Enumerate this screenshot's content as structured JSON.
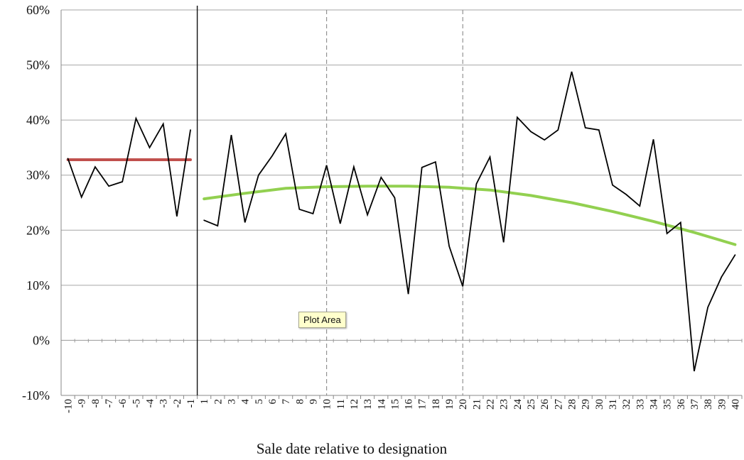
{
  "chart_data": {
    "type": "line",
    "xlabel": "Sale date relative to designation",
    "y_ticks": [
      "60%",
      "50%",
      "40%",
      "30%",
      "20%",
      "10%",
      "0%",
      "-10%"
    ],
    "ylim": [
      -10,
      60
    ],
    "x_categories": [
      "-10",
      "-9",
      "-8",
      "-7",
      "-6",
      "-5",
      "-4",
      "-3",
      "-2",
      "-1",
      "1",
      "2",
      "3",
      "4",
      "5",
      "6",
      "7",
      "8",
      "9",
      "10",
      "11",
      "12",
      "13",
      "14",
      "15",
      "16",
      "17",
      "18",
      "19",
      "20",
      "21",
      "22",
      "23",
      "24",
      "25",
      "26",
      "27",
      "28",
      "29",
      "30",
      "31",
      "32",
      "33",
      "34",
      "35",
      "36",
      "37",
      "38",
      "39",
      "40"
    ],
    "series": [
      {
        "color": "#000000",
        "before_x": [
          "-10",
          "-9",
          "-8",
          "-7",
          "-6",
          "-5",
          "-4",
          "-3",
          "-2",
          "-1"
        ],
        "before_values": [
          33,
          26,
          31.5,
          28,
          28.8,
          40.3,
          35,
          39.3,
          22.5,
          38.2
        ],
        "after_x": [
          "1",
          "2",
          "3",
          "4",
          "5",
          "6",
          "7",
          "8",
          "9",
          "10",
          "11",
          "12",
          "13",
          "14",
          "15",
          "16",
          "17",
          "18",
          "19",
          "20",
          "21",
          "22",
          "23",
          "24",
          "25",
          "26",
          "27",
          "28",
          "29",
          "30",
          "31",
          "32",
          "33",
          "34",
          "35",
          "36",
          "37",
          "38",
          "39",
          "40"
        ],
        "after_values": [
          21.8,
          20.8,
          37.3,
          21.4,
          30,
          33.5,
          37.5,
          23.8,
          23,
          31.8,
          21.2,
          31.5,
          22.8,
          29.6,
          25.9,
          8.4,
          31.4,
          32.4,
          17.1,
          9.8,
          28.4,
          33.3,
          17.8,
          40.5,
          37.9,
          36.4,
          38.2,
          48.8,
          38.6,
          38.2,
          28.2,
          26.5,
          24.4,
          36.5,
          19.4,
          21.4,
          -5.6,
          6,
          11.5,
          15.5
        ]
      },
      {
        "color": "#c0504d",
        "x": [
          "-10",
          "-1"
        ],
        "values": [
          32.8,
          32.8
        ]
      },
      {
        "color": "#92d050",
        "x": [
          "1",
          "4",
          "7",
          "10",
          "13",
          "16",
          "19",
          "22",
          "25",
          "28",
          "31",
          "34",
          "37",
          "40"
        ],
        "values": [
          25.7,
          26.7,
          27.6,
          27.9,
          28.0,
          28.0,
          27.8,
          27.3,
          26.3,
          25.0,
          23.4,
          21.6,
          19.6,
          17.4
        ]
      }
    ],
    "dividers": [
      {
        "between": [
          "-1",
          "1"
        ],
        "style": "solid"
      },
      {
        "at": "10",
        "style": "dashed"
      },
      {
        "at": "20",
        "style": "dashed"
      }
    ],
    "grid": "horizontal",
    "legend": "none"
  },
  "tooltip": "Plot Area"
}
